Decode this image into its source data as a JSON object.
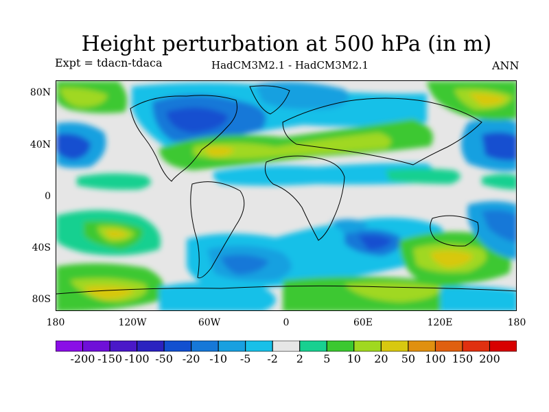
{
  "header": {
    "title": "Height perturbation at 500 hPa (in m)",
    "experiment": "Expt = tdacn-tdaca",
    "models": "HadCM3M2.1 - HadCM3M2.1",
    "period": "ANN"
  },
  "map": {
    "projection": "cylindrical-equidistant",
    "lat_labels": [
      "80N",
      "40N",
      "0",
      "40S",
      "80S"
    ],
    "lon_labels": [
      "180",
      "120W",
      "60W",
      "0",
      "60E",
      "120E",
      "180"
    ],
    "field_description": "500 hPa geopotential height perturbation anomaly bands",
    "colors": {
      "neutral": "#e6e6e6",
      "coastline": "#000000"
    }
  },
  "legend": {
    "labels": [
      "-200",
      "-150",
      "-100",
      "-50",
      "-20",
      "-10",
      "-5",
      "-2",
      "2",
      "5",
      "10",
      "20",
      "50",
      "100",
      "150",
      "200"
    ],
    "colors": [
      "#8a0ee6",
      "#6f10d8",
      "#4a18c8",
      "#2b22c0",
      "#1250d0",
      "#1678d8",
      "#18a0e0",
      "#18c0e8",
      "#e6e6e6",
      "#18d090",
      "#3cc830",
      "#a0d820",
      "#d8c810",
      "#e09010",
      "#e06010",
      "#e03010",
      "#d80000"
    ]
  }
}
